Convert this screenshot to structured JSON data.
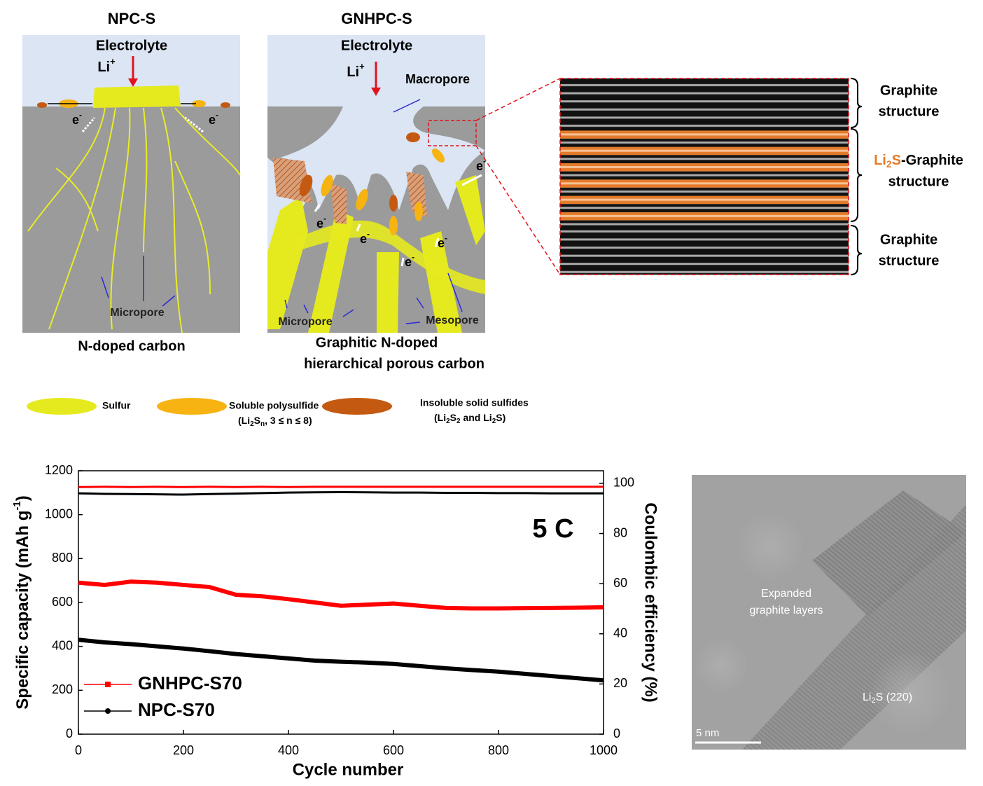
{
  "npc": {
    "title": "NPC-S",
    "electrolyte": "Electrolyte",
    "li": [
      "Li",
      "+"
    ],
    "e_left": [
      "e",
      "-"
    ],
    "e_right": [
      "e",
      "-"
    ],
    "micropore": "Micropore",
    "caption": "N-doped carbon"
  },
  "gnhpc": {
    "title": "GNHPC-S",
    "electrolyte": "Electrolyte",
    "li": [
      "Li",
      "+"
    ],
    "macropore": "Macropore",
    "electrons": [
      [
        "e",
        "-"
      ],
      [
        "e",
        "-"
      ],
      [
        "e",
        "-"
      ],
      [
        "e",
        "-"
      ],
      [
        "e",
        "-"
      ]
    ],
    "micropore": "Micropore",
    "mesopore": "Mesopore",
    "caption": [
      "Graphitic N-doped",
      "hierarchical porous carbon"
    ]
  },
  "zoom": {
    "top": [
      "Graphite",
      "structure"
    ],
    "middle": {
      "highlight": [
        "Li",
        "2",
        "S"
      ],
      "rest": "-Graphite",
      "line2": "structure"
    },
    "bottom": [
      "Graphite",
      "structure"
    ]
  },
  "legend": {
    "sulfur": "Sulfur",
    "polysulfide": {
      "name": "Soluble polysulfide",
      "formula": [
        "(Li",
        "2",
        "S",
        "n",
        ", 3 ≤ n ≤ 8)"
      ]
    },
    "solid": {
      "name": "Insoluble solid sulfides",
      "formula": [
        "(Li",
        "2",
        "S",
        "2",
        " and Li",
        "2",
        "S)"
      ]
    }
  },
  "chart_data": {
    "type": "line",
    "annotation": "5 C",
    "x_label": "Cycle number",
    "y_label": [
      "Specific capacity (mAh g",
      "-1",
      ")"
    ],
    "y2_label": "Coulombic efficiency (%)",
    "x": [
      0,
      50,
      100,
      150,
      200,
      250,
      300,
      350,
      400,
      450,
      500,
      550,
      600,
      650,
      700,
      750,
      800,
      850,
      900,
      950,
      1000
    ],
    "series": [
      {
        "name": "GNHPC-S70",
        "color": "#ff0000",
        "marker": "square",
        "values": [
          690,
          680,
          695,
          690,
          680,
          670,
          635,
          628,
          615,
          600,
          585,
          590,
          595,
          585,
          575,
          573,
          573,
          574,
          575,
          576,
          578
        ],
        "efficiency": [
          98.5,
          98.6,
          98.5,
          98.6,
          98.5,
          98.6,
          98.5,
          98.6,
          98.5,
          98.6,
          98.6,
          98.6,
          98.6,
          98.6,
          98.6,
          98.6,
          98.6,
          98.6,
          98.6,
          98.6,
          98.6
        ]
      },
      {
        "name": "NPC-S70",
        "color": "#000000",
        "marker": "circle",
        "values": [
          430,
          418,
          410,
          400,
          390,
          378,
          365,
          355,
          345,
          335,
          330,
          326,
          320,
          310,
          300,
          292,
          285,
          275,
          265,
          255,
          245
        ],
        "efficiency": [
          96,
          95.8,
          95.7,
          95.6,
          95.5,
          95.7,
          95.9,
          96.1,
          96.3,
          96.4,
          96.5,
          96.4,
          96.3,
          96.3,
          96.2,
          96.2,
          96.1,
          96.1,
          96,
          96,
          96
        ]
      }
    ],
    "xlim": [
      0,
      1000
    ],
    "xticks": [
      0,
      200,
      400,
      600,
      800,
      1000
    ],
    "ylim": [
      0,
      1200
    ],
    "yticks": [
      0,
      200,
      400,
      600,
      800,
      1000,
      1200
    ],
    "y2lim": [
      0,
      105
    ],
    "y2ticks": [
      0,
      20,
      40,
      60,
      80,
      100
    ]
  },
  "tem": {
    "label": [
      "Expanded",
      "graphite layers"
    ],
    "phase": [
      "Li",
      "2",
      "S (220)"
    ],
    "scale": "5 nm"
  }
}
